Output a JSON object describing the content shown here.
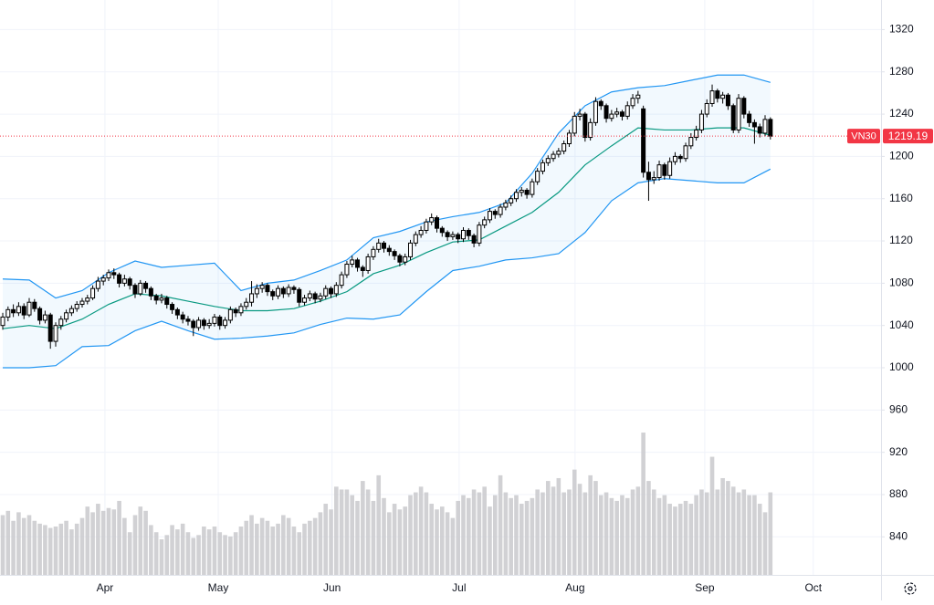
{
  "chart_data": {
    "type": "candlestick",
    "symbol": "VN30",
    "xlim": [
      -0.52,
      165.9
    ],
    "xticks": [
      {
        "value": 19.3,
        "label": "Apr"
      },
      {
        "value": 40.7,
        "label": "May"
      },
      {
        "value": 62.2,
        "label": "Jun"
      },
      {
        "value": 86.2,
        "label": "Jul"
      },
      {
        "value": 108.1,
        "label": "Aug"
      },
      {
        "value": 132.6,
        "label": "Sep"
      },
      {
        "value": 153.1,
        "label": "Oct"
      }
    ],
    "ylim": [
      804,
      1348
    ],
    "yticks": [
      840,
      880,
      920,
      960,
      1000,
      1040,
      1080,
      1120,
      1160,
      1200,
      1240,
      1280,
      1320
    ],
    "grid": true,
    "up_color": "#ffffff",
    "down_color": "#000000",
    "band_color": "#2196f3",
    "middle_color": "#089981",
    "volume_color": "#c9c9cc",
    "last_price_color": "#f23645",
    "candles": [
      [
        1040,
        1052,
        1036,
        1048
      ],
      [
        1048,
        1058,
        1044,
        1055
      ],
      [
        1055,
        1060,
        1048,
        1052
      ],
      [
        1052,
        1062,
        1049,
        1058
      ],
      [
        1058,
        1061,
        1046,
        1050
      ],
      [
        1050,
        1066,
        1048,
        1062
      ],
      [
        1062,
        1065,
        1053,
        1056
      ],
      [
        1056,
        1058,
        1041,
        1045
      ],
      [
        1045,
        1054,
        1042,
        1050
      ],
      [
        1050,
        1052,
        1018,
        1025
      ],
      [
        1025,
        1043,
        1020,
        1040
      ],
      [
        1040,
        1049,
        1036,
        1046
      ],
      [
        1046,
        1055,
        1043,
        1052
      ],
      [
        1052,
        1059,
        1049,
        1056
      ],
      [
        1056,
        1063,
        1053,
        1060
      ],
      [
        1060,
        1066,
        1057,
        1063
      ],
      [
        1063,
        1069,
        1060,
        1066
      ],
      [
        1066,
        1078,
        1064,
        1075
      ],
      [
        1075,
        1086,
        1072,
        1082
      ],
      [
        1082,
        1088,
        1078,
        1085
      ],
      [
        1085,
        1093,
        1082,
        1090
      ],
      [
        1090,
        1094,
        1084,
        1088
      ],
      [
        1088,
        1090,
        1076,
        1080
      ],
      [
        1080,
        1088,
        1077,
        1084
      ],
      [
        1084,
        1086,
        1074,
        1078
      ],
      [
        1078,
        1080,
        1066,
        1070
      ],
      [
        1070,
        1083,
        1068,
        1080
      ],
      [
        1080,
        1082,
        1071,
        1075
      ],
      [
        1075,
        1077,
        1064,
        1068
      ],
      [
        1068,
        1070,
        1060,
        1064
      ],
      [
        1064,
        1070,
        1061,
        1066
      ],
      [
        1066,
        1068,
        1056,
        1060
      ],
      [
        1060,
        1062,
        1051,
        1055
      ],
      [
        1055,
        1057,
        1046,
        1050
      ],
      [
        1050,
        1053,
        1042,
        1046
      ],
      [
        1046,
        1049,
        1040,
        1044
      ],
      [
        1044,
        1046,
        1030,
        1038
      ],
      [
        1038,
        1048,
        1035,
        1045
      ],
      [
        1045,
        1047,
        1036,
        1040
      ],
      [
        1040,
        1046,
        1037,
        1042
      ],
      [
        1042,
        1051,
        1039,
        1048
      ],
      [
        1048,
        1050,
        1036,
        1040
      ],
      [
        1040,
        1048,
        1037,
        1045
      ],
      [
        1045,
        1058,
        1042,
        1055
      ],
      [
        1055,
        1057,
        1048,
        1052
      ],
      [
        1052,
        1061,
        1049,
        1058
      ],
      [
        1058,
        1066,
        1055,
        1062
      ],
      [
        1062,
        1082,
        1058,
        1070
      ],
      [
        1070,
        1079,
        1066,
        1075
      ],
      [
        1075,
        1081,
        1071,
        1078
      ],
      [
        1078,
        1080,
        1068,
        1072
      ],
      [
        1072,
        1074,
        1064,
        1068
      ],
      [
        1068,
        1078,
        1065,
        1075
      ],
      [
        1075,
        1077,
        1066,
        1070
      ],
      [
        1070,
        1079,
        1067,
        1076
      ],
      [
        1076,
        1078,
        1070,
        1074
      ],
      [
        1074,
        1076,
        1058,
        1062
      ],
      [
        1062,
        1069,
        1059,
        1066
      ],
      [
        1066,
        1073,
        1063,
        1070
      ],
      [
        1070,
        1072,
        1061,
        1065
      ],
      [
        1065,
        1071,
        1062,
        1068
      ],
      [
        1068,
        1078,
        1065,
        1075
      ],
      [
        1075,
        1077,
        1066,
        1070
      ],
      [
        1070,
        1081,
        1067,
        1078
      ],
      [
        1078,
        1091,
        1075,
        1088
      ],
      [
        1088,
        1101,
        1085,
        1098
      ],
      [
        1098,
        1106,
        1095,
        1102
      ],
      [
        1102,
        1104,
        1091,
        1095
      ],
      [
        1095,
        1097,
        1086,
        1092
      ],
      [
        1092,
        1108,
        1089,
        1105
      ],
      [
        1105,
        1115,
        1102,
        1112
      ],
      [
        1112,
        1122,
        1109,
        1118
      ],
      [
        1118,
        1120,
        1109,
        1113
      ],
      [
        1113,
        1116,
        1106,
        1110
      ],
      [
        1110,
        1112,
        1102,
        1106
      ],
      [
        1106,
        1108,
        1096,
        1100
      ],
      [
        1100,
        1108,
        1097,
        1105
      ],
      [
        1105,
        1121,
        1102,
        1118
      ],
      [
        1118,
        1129,
        1115,
        1126
      ],
      [
        1126,
        1134,
        1123,
        1130
      ],
      [
        1130,
        1141,
        1127,
        1138
      ],
      [
        1138,
        1146,
        1135,
        1142
      ],
      [
        1142,
        1144,
        1128,
        1132
      ],
      [
        1132,
        1134,
        1124,
        1128
      ],
      [
        1128,
        1130,
        1120,
        1124
      ],
      [
        1124,
        1129,
        1121,
        1126
      ],
      [
        1126,
        1128,
        1118,
        1122
      ],
      [
        1122,
        1133,
        1119,
        1130
      ],
      [
        1130,
        1132,
        1121,
        1125
      ],
      [
        1125,
        1127,
        1114,
        1118
      ],
      [
        1118,
        1138,
        1115,
        1135
      ],
      [
        1135,
        1143,
        1132,
        1140
      ],
      [
        1140,
        1151,
        1137,
        1148
      ],
      [
        1148,
        1150,
        1141,
        1145
      ],
      [
        1145,
        1155,
        1142,
        1152
      ],
      [
        1152,
        1159,
        1149,
        1156
      ],
      [
        1156,
        1163,
        1153,
        1160
      ],
      [
        1160,
        1169,
        1157,
        1166
      ],
      [
        1166,
        1171,
        1162,
        1168
      ],
      [
        1168,
        1170,
        1160,
        1164
      ],
      [
        1164,
        1179,
        1161,
        1176
      ],
      [
        1176,
        1189,
        1173,
        1186
      ],
      [
        1186,
        1197,
        1183,
        1194
      ],
      [
        1194,
        1201,
        1191,
        1198
      ],
      [
        1198,
        1205,
        1195,
        1202
      ],
      [
        1202,
        1208,
        1199,
        1205
      ],
      [
        1205,
        1215,
        1202,
        1212
      ],
      [
        1212,
        1225,
        1209,
        1222
      ],
      [
        1222,
        1242,
        1219,
        1238
      ],
      [
        1238,
        1245,
        1234,
        1240
      ],
      [
        1240,
        1242,
        1214,
        1218
      ],
      [
        1218,
        1236,
        1215,
        1232
      ],
      [
        1232,
        1256,
        1229,
        1252
      ],
      [
        1252,
        1254,
        1244,
        1248
      ],
      [
        1248,
        1250,
        1232,
        1236
      ],
      [
        1236,
        1244,
        1233,
        1240
      ],
      [
        1240,
        1246,
        1237,
        1242
      ],
      [
        1242,
        1244,
        1234,
        1238
      ],
      [
        1238,
        1252,
        1235,
        1248
      ],
      [
        1248,
        1259,
        1245,
        1255
      ],
      [
        1255,
        1262,
        1250,
        1258
      ],
      [
        1245,
        1248,
        1180,
        1185
      ],
      [
        1185,
        1195,
        1158,
        1178
      ],
      [
        1178,
        1186,
        1174,
        1180
      ],
      [
        1180,
        1196,
        1177,
        1192
      ],
      [
        1192,
        1194,
        1178,
        1182
      ],
      [
        1182,
        1199,
        1179,
        1195
      ],
      [
        1195,
        1204,
        1192,
        1200
      ],
      [
        1200,
        1202,
        1194,
        1198
      ],
      [
        1198,
        1213,
        1195,
        1210
      ],
      [
        1210,
        1222,
        1207,
        1218
      ],
      [
        1218,
        1229,
        1215,
        1225
      ],
      [
        1225,
        1244,
        1222,
        1240
      ],
      [
        1240,
        1254,
        1237,
        1250
      ],
      [
        1250,
        1268,
        1247,
        1262
      ],
      [
        1262,
        1264,
        1251,
        1255
      ],
      [
        1255,
        1261,
        1250,
        1258
      ],
      [
        1258,
        1260,
        1244,
        1248
      ],
      [
        1248,
        1250,
        1222,
        1225
      ],
      [
        1225,
        1259,
        1222,
        1255
      ],
      [
        1255,
        1257,
        1236,
        1240
      ],
      [
        1240,
        1243,
        1228,
        1232
      ],
      [
        1232,
        1235,
        1212,
        1228
      ],
      [
        1228,
        1231,
        1218,
        1222
      ],
      [
        1222,
        1239,
        1219,
        1235
      ],
      [
        1235,
        1237,
        1216,
        1219.19
      ]
    ],
    "volume_ylim": [
      0,
      101
    ],
    "volume": [
      42,
      45,
      38,
      44,
      40,
      42,
      38,
      36,
      35,
      33,
      34,
      36,
      38,
      32,
      36,
      40,
      48,
      44,
      50,
      45,
      47,
      46,
      52,
      40,
      30,
      42,
      48,
      45,
      35,
      30,
      25,
      28,
      35,
      32,
      36,
      30,
      26,
      28,
      34,
      32,
      34,
      30,
      28,
      27,
      30,
      34,
      38,
      42,
      36,
      40,
      38,
      34,
      36,
      42,
      40,
      34,
      30,
      36,
      38,
      40,
      44,
      50,
      46,
      62,
      60,
      60,
      56,
      52,
      66,
      60,
      52,
      70,
      54,
      44,
      50,
      46,
      48,
      56,
      58,
      62,
      58,
      50,
      46,
      48,
      44,
      40,
      52,
      56,
      54,
      60,
      58,
      62,
      48,
      56,
      70,
      58,
      54,
      56,
      50,
      52,
      54,
      60,
      58,
      66,
      62,
      68,
      58,
      60,
      74,
      64,
      58,
      70,
      66,
      56,
      58,
      54,
      52,
      56,
      54,
      60,
      62,
      100,
      66,
      60,
      54,
      56,
      50,
      48,
      50,
      52,
      50,
      56,
      60,
      58,
      83,
      60,
      68,
      66,
      62,
      58,
      60,
      56,
      56,
      50,
      44,
      58
    ],
    "bands": {
      "x": [
        0,
        5,
        10,
        15,
        20,
        25,
        30,
        35,
        40,
        45,
        50,
        55,
        60,
        65,
        70,
        75,
        80,
        85,
        90,
        95,
        100,
        105,
        110,
        115,
        120,
        125,
        130,
        135,
        140,
        145
      ],
      "upper": [
        1084,
        1083,
        1066,
        1073,
        1090,
        1101,
        1095,
        1097,
        1099,
        1073,
        1080,
        1083,
        1092,
        1102,
        1123,
        1129,
        1138,
        1143,
        1147,
        1156,
        1184,
        1222,
        1248,
        1261,
        1265,
        1267,
        1272,
        1277,
        1277,
        1270
      ],
      "middle": [
        1037,
        1040,
        1037,
        1046,
        1060,
        1070,
        1068,
        1063,
        1058,
        1054,
        1054,
        1056,
        1063,
        1072,
        1089,
        1097,
        1109,
        1119,
        1121,
        1134,
        1147,
        1166,
        1192,
        1210,
        1227,
        1225,
        1225,
        1227,
        1227,
        1220
      ],
      "lower": [
        1000,
        1000,
        1002,
        1020,
        1021,
        1035,
        1044,
        1035,
        1027,
        1028,
        1030,
        1033,
        1041,
        1047,
        1046,
        1050,
        1072,
        1092,
        1096,
        1102,
        1104,
        1108,
        1128,
        1158,
        1175,
        1179,
        1177,
        1175,
        1175,
        1188
      ]
    }
  }
}
